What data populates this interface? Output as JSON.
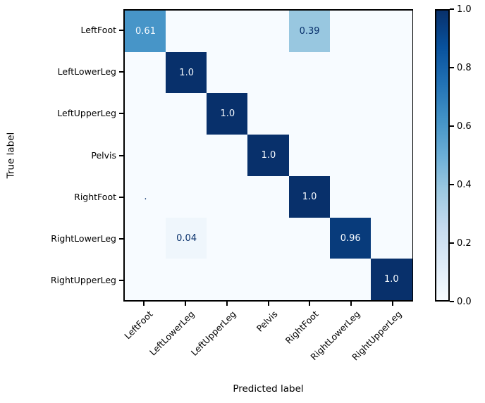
{
  "chart_data": {
    "type": "heatmap",
    "title": "",
    "xlabel": "Predicted label",
    "ylabel": "True label",
    "x_categories": [
      "LeftFoot",
      "LeftLowerLeg",
      "LeftUpperLeg",
      "Pelvis",
      "RightFoot",
      "RightLowerLeg",
      "RightUpperLeg"
    ],
    "y_categories": [
      "LeftFoot",
      "LeftLowerLeg",
      "LeftUpperLeg",
      "Pelvis",
      "RightFoot",
      "RightLowerLeg",
      "RightUpperLeg"
    ],
    "matrix": [
      [
        0.61,
        0.0,
        0.0,
        0.0,
        0.39,
        0.0,
        0.0
      ],
      [
        0.0,
        1.0,
        0.0,
        0.0,
        0.0,
        0.0,
        0.0
      ],
      [
        0.0,
        0.0,
        1.0,
        0.0,
        0.0,
        0.0,
        0.0
      ],
      [
        0.0,
        0.0,
        0.0,
        1.0,
        0.0,
        0.0,
        0.0
      ],
      [
        0.0,
        0.0,
        0.0,
        0.0,
        1.0,
        0.0,
        0.0
      ],
      [
        0.0,
        0.04,
        0.0,
        0.0,
        0.0,
        0.96,
        0.0
      ],
      [
        0.0,
        0.0,
        0.0,
        0.0,
        0.0,
        0.0,
        1.0
      ]
    ],
    "annotations": [
      {
        "row": 0,
        "col": 0,
        "text": "0.61"
      },
      {
        "row": 0,
        "col": 4,
        "text": "0.39"
      },
      {
        "row": 1,
        "col": 1,
        "text": "1.0"
      },
      {
        "row": 2,
        "col": 2,
        "text": "1.0"
      },
      {
        "row": 3,
        "col": 3,
        "text": "1.0"
      },
      {
        "row": 4,
        "col": 0,
        "text": "."
      },
      {
        "row": 4,
        "col": 4,
        "text": "1.0"
      },
      {
        "row": 5,
        "col": 1,
        "text": "0.04"
      },
      {
        "row": 5,
        "col": 5,
        "text": "0.96"
      },
      {
        "row": 6,
        "col": 6,
        "text": "1.0"
      }
    ],
    "vmin": 0.0,
    "vmax": 1.0,
    "colormap": "Blues",
    "colorbar_tick_values": [
      1.0,
      0.8,
      0.6,
      0.4,
      0.2,
      0.0
    ],
    "colorbar_tick_labels": [
      "1.0",
      "0.8",
      "0.6",
      "0.4",
      "0.2",
      "0.0"
    ],
    "legend_position": "right-colorbar",
    "grid": false
  },
  "colors": {
    "cmap_stops": [
      "#f7fbff",
      "#deebf7",
      "#c6dbef",
      "#9ecae1",
      "#6baed6",
      "#4292c6",
      "#2171b5",
      "#08519c",
      "#08306b"
    ],
    "text_on_dark": "#f7fbff",
    "text_on_light": "#08306b",
    "spine": "#000000",
    "background": "#ffffff"
  }
}
